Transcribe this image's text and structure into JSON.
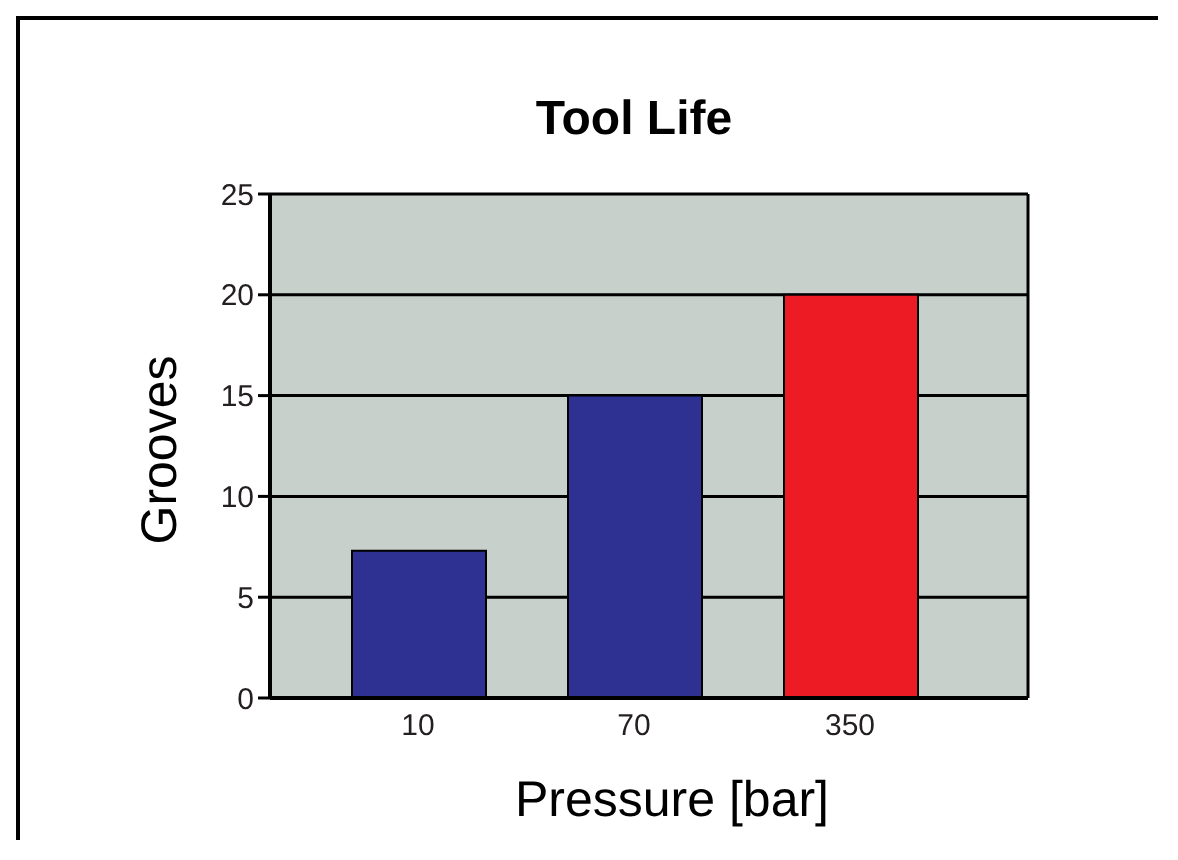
{
  "chart_data": {
    "type": "bar",
    "title": "Tool Life",
    "xlabel": "Pressure [bar]",
    "ylabel": "Grooves",
    "categories": [
      "10",
      "70",
      "350"
    ],
    "values": [
      7.3,
      15,
      20
    ],
    "colors": [
      "#2e3192",
      "#2e3192",
      "#ed1c24"
    ],
    "ylim": [
      0,
      25
    ],
    "yticks": [
      0,
      5,
      10,
      15,
      20,
      25
    ],
    "grid": "y"
  }
}
